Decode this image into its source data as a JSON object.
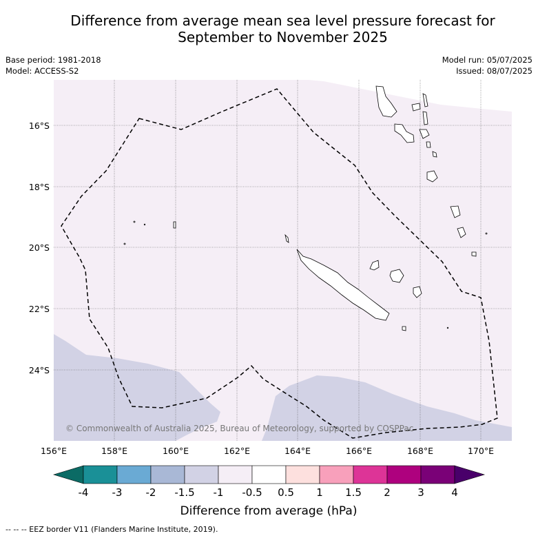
{
  "title_line1": "Difference from average mean sea level pressure forecast for",
  "title_line2": "September to November 2025",
  "meta_left": {
    "base_period": "Base period: 1981-2018",
    "model": "Model: ACCESS-S2"
  },
  "meta_right": {
    "model_run": "Model run: 05/07/2025",
    "issued": "Issued: 08/07/2025"
  },
  "map": {
    "lat_labels": [
      "16°S",
      "18°S",
      "20°S",
      "22°S",
      "24°S"
    ],
    "lon_labels": [
      "156°E",
      "158°E",
      "160°E",
      "162°E",
      "164°E",
      "166°E",
      "168°E",
      "170°E"
    ],
    "copyright": "© Commonwealth of Australia 2025, Bureau of Meteorology, supported by COSPPac",
    "colors": {
      "anomaly_neg_0_5_to_neg_1": "#f5eef6",
      "anomaly_neg_1_to_neg_1_5": "#d2d2e5"
    }
  },
  "colorbar": {
    "title": "Difference from average (hPa)",
    "tick_labels": [
      "-4",
      "-3",
      "-2",
      "-1.5",
      "-1",
      "-0.5",
      "0.5",
      "1",
      "1.5",
      "2",
      "3",
      "4"
    ],
    "colors": [
      "#0b6b65",
      "#1a9097",
      "#6aaad4",
      "#a9b8d6",
      "#d2d2e5",
      "#f5eef6",
      "#ffffff",
      "#fde0de",
      "#f8a0bb",
      "#dd3497",
      "#ae017e",
      "#7a0177",
      "#49006a"
    ]
  },
  "footer": "-- -- -- EEZ border V11 (Flanders Marine Institute, 2019)."
}
